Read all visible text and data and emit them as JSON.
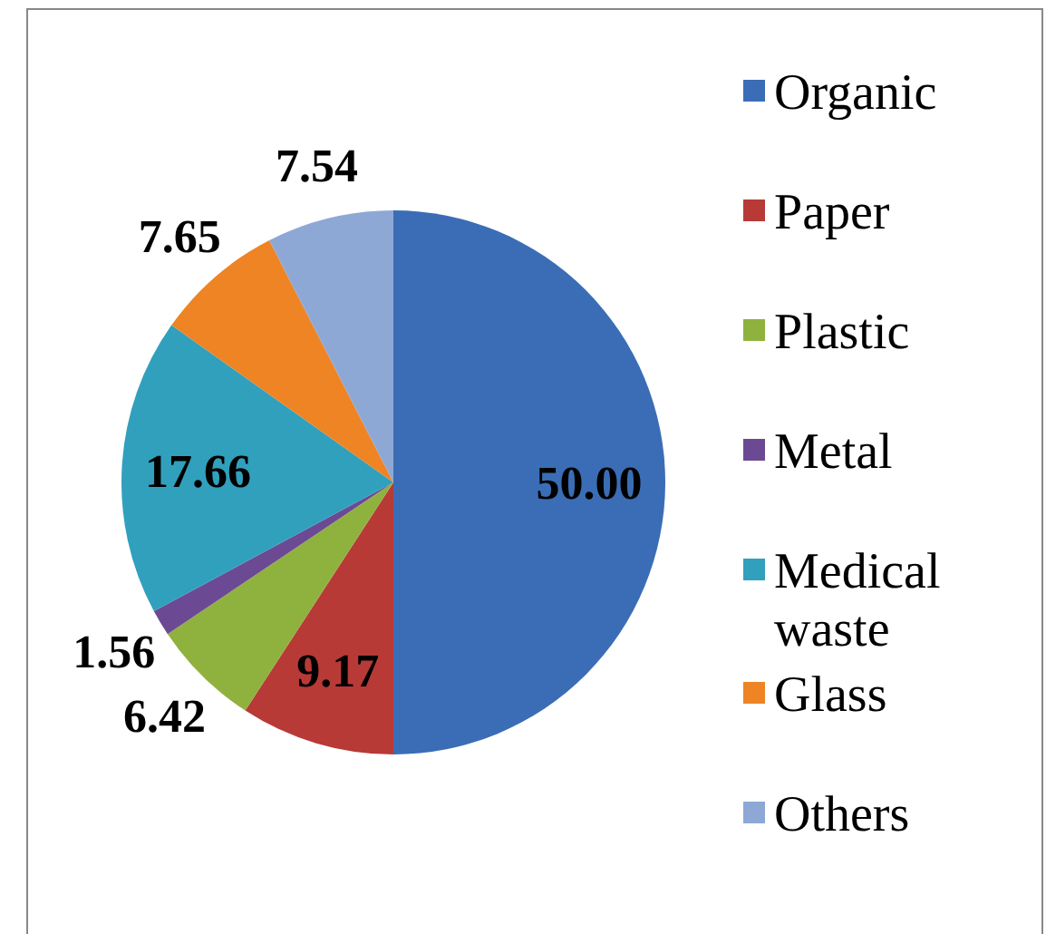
{
  "chart_data": {
    "type": "pie",
    "categories": [
      "Organic",
      "Paper",
      "Plastic",
      "Metal",
      "Medical waste",
      "Glass",
      "Others"
    ],
    "values": [
      50.0,
      9.17,
      6.42,
      1.56,
      17.66,
      7.65,
      7.54
    ],
    "value_labels": [
      "50.00",
      "9.17",
      "6.42",
      "1.56",
      "17.66",
      "7.65",
      "7.54"
    ],
    "colors": [
      "#3a6db5",
      "#b83a37",
      "#8fb23f",
      "#6b4a93",
      "#30a0bd",
      "#ee8424",
      "#8ea8d5"
    ],
    "legend": "right"
  }
}
